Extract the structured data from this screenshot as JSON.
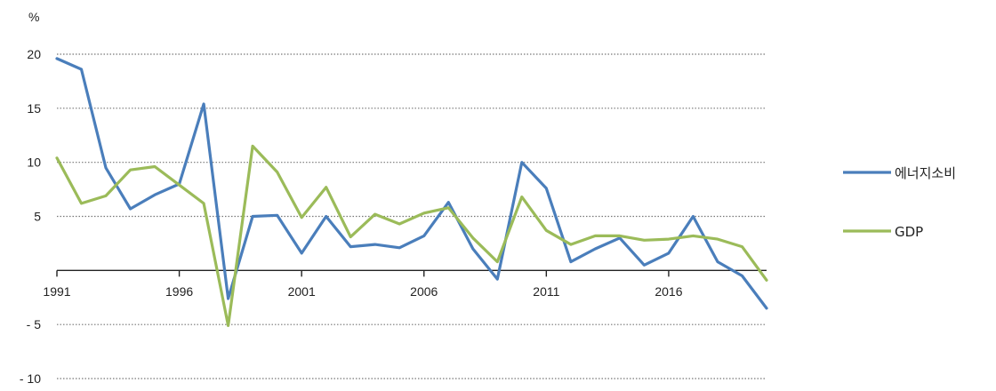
{
  "chart_data": {
    "type": "line",
    "unit_label": "%",
    "x": [
      1991,
      1992,
      1993,
      1994,
      1995,
      1996,
      1997,
      1998,
      1999,
      2000,
      2001,
      2002,
      2003,
      2004,
      2005,
      2006,
      2007,
      2008,
      2009,
      2010,
      2011,
      2012,
      2013,
      2014,
      2015,
      2016,
      2017,
      2018,
      2019,
      2020
    ],
    "x_tick_labels": [
      "1991",
      "1996",
      "2001",
      "2006",
      "2011",
      "2016"
    ],
    "y_tick_labels": [
      "20",
      "15",
      "10",
      "5",
      "- 5",
      "- 10"
    ],
    "ylim": [
      -10,
      20
    ],
    "grid": true,
    "legend_position": "right",
    "series": [
      {
        "name": "에너지소비",
        "color": "#4a7ebb",
        "values": [
          19.6,
          18.6,
          9.5,
          5.7,
          7.0,
          8.0,
          15.4,
          -2.6,
          5.0,
          5.1,
          1.6,
          5.0,
          2.2,
          2.4,
          2.1,
          3.2,
          6.3,
          2.0,
          -0.8,
          10.0,
          7.6,
          0.8,
          2.0,
          3.0,
          0.5,
          1.6,
          5.0,
          0.8,
          -0.5,
          -3.5
        ]
      },
      {
        "name": "GDP",
        "color": "#9bbb59",
        "values": [
          10.4,
          6.2,
          6.9,
          9.3,
          9.6,
          7.9,
          6.2,
          -5.1,
          11.5,
          9.1,
          4.9,
          7.7,
          3.1,
          5.2,
          4.3,
          5.3,
          5.8,
          3.0,
          0.8,
          6.8,
          3.7,
          2.4,
          3.2,
          3.2,
          2.8,
          2.9,
          3.2,
          2.9,
          2.2,
          -0.9
        ]
      }
    ]
  }
}
